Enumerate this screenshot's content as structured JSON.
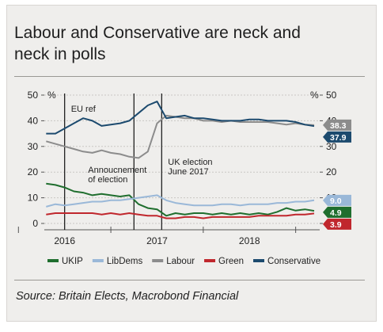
{
  "title_line1": "Labour and Conservative are neck and",
  "title_line2": "neck in polls",
  "source": "Source: Britain Elects, Macrobond Financial",
  "chart_data": {
    "type": "line",
    "title": "Labour and Conservative are neck and neck in polls",
    "xlabel": "",
    "ylabel": "%",
    "y2label": "%",
    "ylim": [
      0,
      50
    ],
    "yticks": [
      0,
      10,
      20,
      30,
      40,
      50
    ],
    "xlim": [
      2015.78,
      2018.76
    ],
    "year_labels": [
      {
        "label": "2016",
        "x": 2016.0
      },
      {
        "label": "2017",
        "x": 2017.0
      },
      {
        "label": "2018",
        "x": 2018.0
      }
    ],
    "vlines": [
      {
        "x": 2016.0,
        "label": [
          "EU ref"
        ]
      },
      {
        "x": 2016.75,
        "label": [
          "Annoucnement",
          "of election"
        ]
      },
      {
        "x": 2017.05,
        "label": [
          "UK election",
          "June 2017"
        ]
      }
    ],
    "grid": true,
    "legend_position": "bottom",
    "x": [
      2015.8,
      2015.9,
      2016.0,
      2016.1,
      2016.2,
      2016.3,
      2016.4,
      2016.5,
      2016.6,
      2016.7,
      2016.8,
      2016.9,
      2017.0,
      2017.1,
      2017.2,
      2017.3,
      2017.4,
      2017.5,
      2017.6,
      2017.7,
      2017.8,
      2017.9,
      2018.0,
      2018.1,
      2018.2,
      2018.3,
      2018.4,
      2018.5,
      2018.6,
      2018.7
    ],
    "series": [
      {
        "name": "UKIP",
        "color": "#1f6e2e",
        "last": "4.9",
        "values": [
          15.5,
          15,
          14,
          12.5,
          12,
          11,
          11.5,
          11,
          10.5,
          11,
          7.5,
          6,
          5.5,
          3,
          4,
          3.5,
          4,
          4,
          3.5,
          4,
          3.5,
          4,
          3.5,
          4,
          3.5,
          4.5,
          6,
          5,
          5.5,
          4.9
        ]
      },
      {
        "name": "LibDems",
        "color": "#9ab8d8",
        "last": "9.0",
        "values": [
          6.5,
          7.5,
          7,
          7.5,
          8,
          8.5,
          8.5,
          9,
          9,
          9.5,
          10,
          10.5,
          11,
          9,
          8,
          7.5,
          7,
          7,
          7,
          7.5,
          7.5,
          7,
          7.5,
          7.5,
          7.5,
          8,
          8,
          8.5,
          8.5,
          9.0
        ]
      },
      {
        "name": "Labour",
        "color": "#8c8c8c",
        "last": "38.3",
        "values": [
          32,
          31,
          30,
          29,
          28,
          27.5,
          28.5,
          27.5,
          27,
          26,
          25.5,
          28,
          39,
          42,
          41.5,
          41,
          41,
          40,
          40,
          39.5,
          40,
          39.5,
          39.5,
          39.5,
          39.5,
          39,
          38.5,
          39,
          38.5,
          38.3
        ]
      },
      {
        "name": "Green",
        "color": "#c0272d",
        "last": "3.9",
        "values": [
          3.5,
          4,
          4,
          4,
          4,
          4,
          3.5,
          4,
          3.5,
          4,
          3.5,
          3,
          3,
          2,
          2,
          2.5,
          2.5,
          2,
          2.5,
          2.5,
          2.5,
          2.5,
          2.5,
          3,
          3,
          3,
          3,
          3.5,
          3.5,
          3.9
        ]
      },
      {
        "name": "Conservative",
        "color": "#1c4a6e",
        "last": "37.9",
        "values": [
          35,
          35,
          37,
          39,
          41,
          40,
          38,
          38.5,
          39,
          40,
          43,
          46,
          47.5,
          41,
          41.5,
          42,
          41,
          41,
          40.5,
          40,
          40,
          40,
          40.5,
          40.5,
          40,
          40,
          40,
          39.5,
          38.5,
          37.9
        ]
      }
    ]
  }
}
